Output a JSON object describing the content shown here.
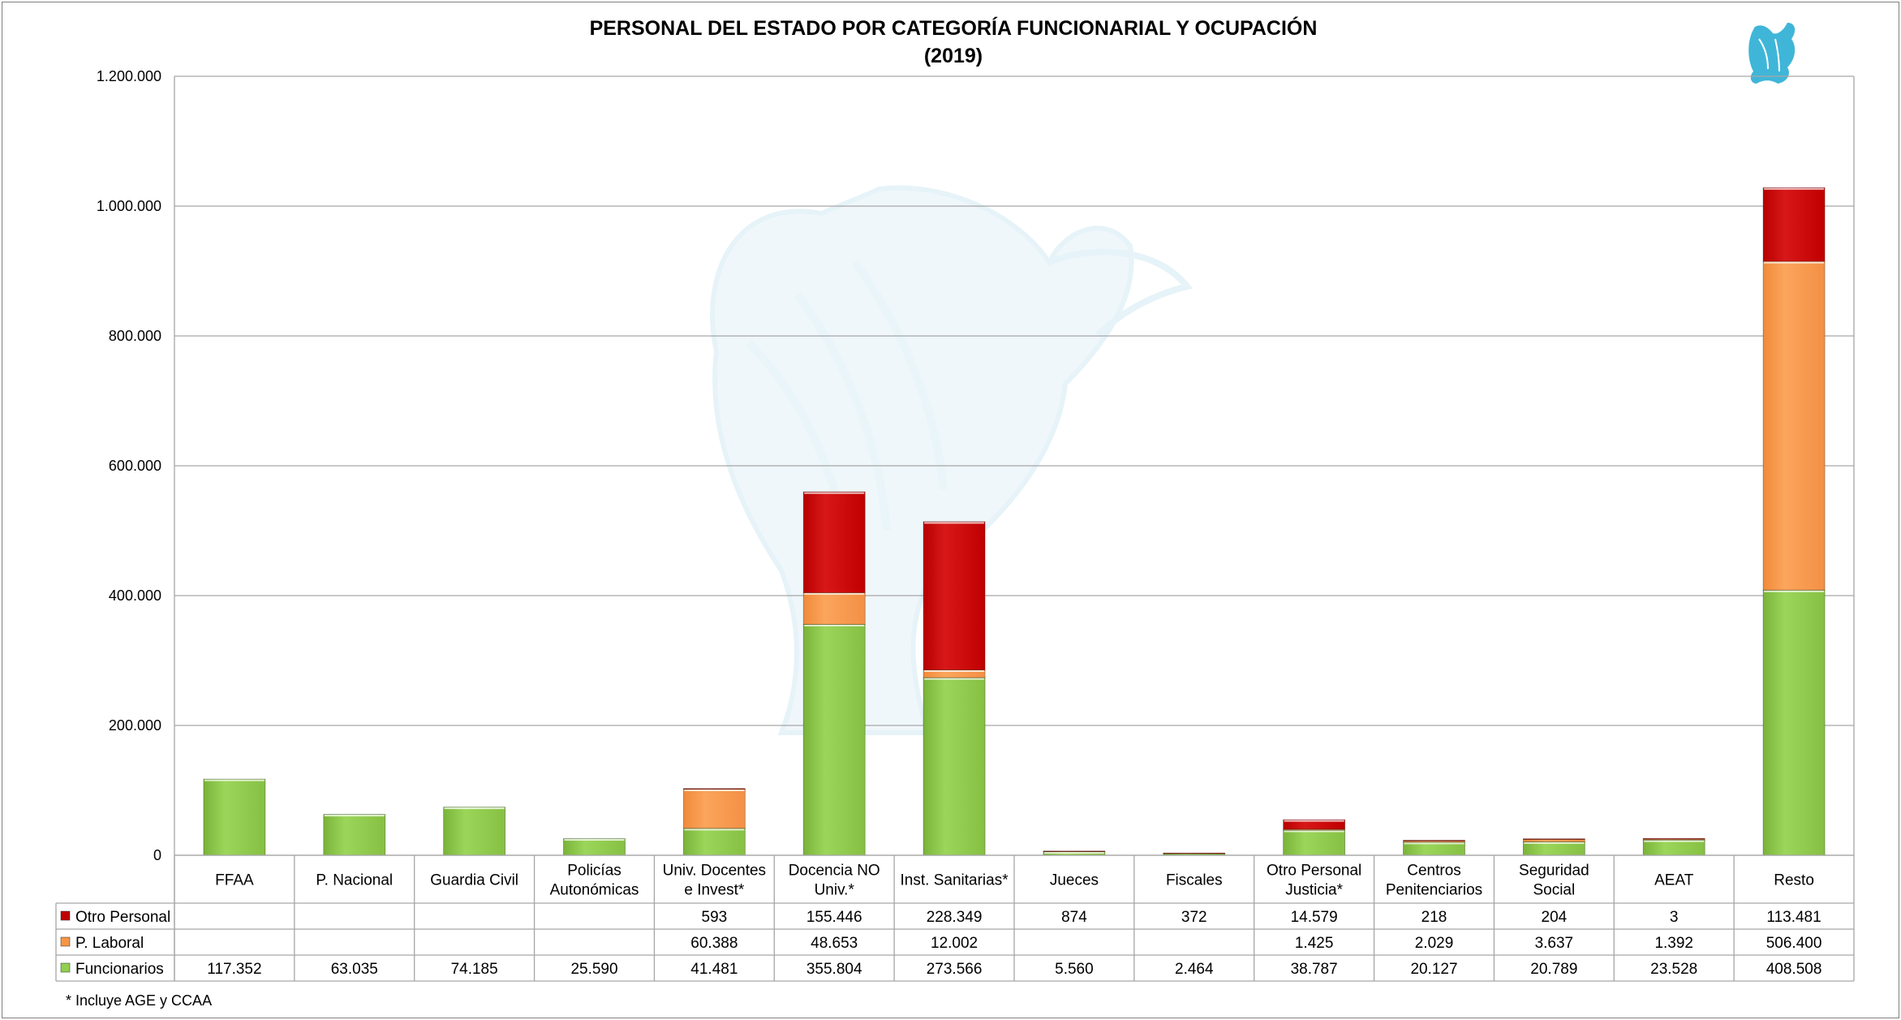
{
  "chart_data": {
    "type": "bar",
    "stacked": true,
    "title": "PERSONAL DEL ESTADO POR CATEGORÍA FUNCIONARIAL Y OCUPACIÓN",
    "subtitle": "(2019)",
    "ylim": [
      0,
      1200000
    ],
    "yticks": [
      "0",
      "200.000",
      "400.000",
      "600.000",
      "800.000",
      "1.000.000",
      "1.200.000"
    ],
    "ytick_values": [
      0,
      200000,
      400000,
      600000,
      800000,
      1000000,
      1200000
    ],
    "grid": true,
    "legend": "data-table",
    "categories": [
      [
        "FFAA"
      ],
      [
        "P. Nacional"
      ],
      [
        "Guardia Civil"
      ],
      [
        "Policías",
        "Autonómicas"
      ],
      [
        "Univ. Docentes",
        "e Invest*"
      ],
      [
        "Docencia NO",
        "Univ.*"
      ],
      [
        "Inst. Sanitarias*"
      ],
      [
        "Jueces"
      ],
      [
        "Fiscales"
      ],
      [
        "Otro Personal",
        "Justicia*"
      ],
      [
        "Centros",
        "Penitenciarios"
      ],
      [
        "Seguridad",
        "Social"
      ],
      [
        "AEAT"
      ],
      [
        "Resto"
      ]
    ],
    "series": [
      {
        "name": "Otro Personal",
        "color": "#c00000",
        "values": [
          null,
          null,
          null,
          null,
          593,
          155446,
          228349,
          874,
          372,
          14579,
          218,
          204,
          3,
          113481
        ],
        "labels": [
          "",
          "",
          "",
          "",
          "593",
          "155.446",
          "228.349",
          "874",
          "372",
          "14.579",
          "218",
          "204",
          "3",
          "113.481"
        ]
      },
      {
        "name": "P. Laboral",
        "color": "#f79646",
        "values": [
          null,
          null,
          null,
          null,
          60388,
          48653,
          12002,
          null,
          null,
          1425,
          2029,
          3637,
          1392,
          506400
        ],
        "labels": [
          "",
          "",
          "",
          "",
          "60.388",
          "48.653",
          "12.002",
          "",
          "",
          "1.425",
          "2.029",
          "3.637",
          "1.392",
          "506.400"
        ]
      },
      {
        "name": "Funcionarios",
        "color": "#92d050",
        "values": [
          117352,
          63035,
          74185,
          25590,
          41481,
          355804,
          273566,
          5560,
          2464,
          38787,
          20127,
          20789,
          23528,
          408508
        ],
        "labels": [
          "117.352",
          "63.035",
          "74.185",
          "25.590",
          "41.481",
          "355.804",
          "273.566",
          "5.560",
          "2.464",
          "38.787",
          "20.127",
          "20.789",
          "23.528",
          "408.508"
        ]
      }
    ],
    "stack_order": [
      "Funcionarios",
      "P. Laboral",
      "Otro Personal"
    ]
  },
  "footnote": "* Incluye AGE y CCAA",
  "watermark_icon": "eagle-emblem-icon",
  "logo_icon": "eagle-logo-icon",
  "colors": {
    "grid": "#a6a6a6",
    "border": "#7f7f7f",
    "watermark": "#cfe8f2",
    "logo": "#3fb6d8"
  }
}
